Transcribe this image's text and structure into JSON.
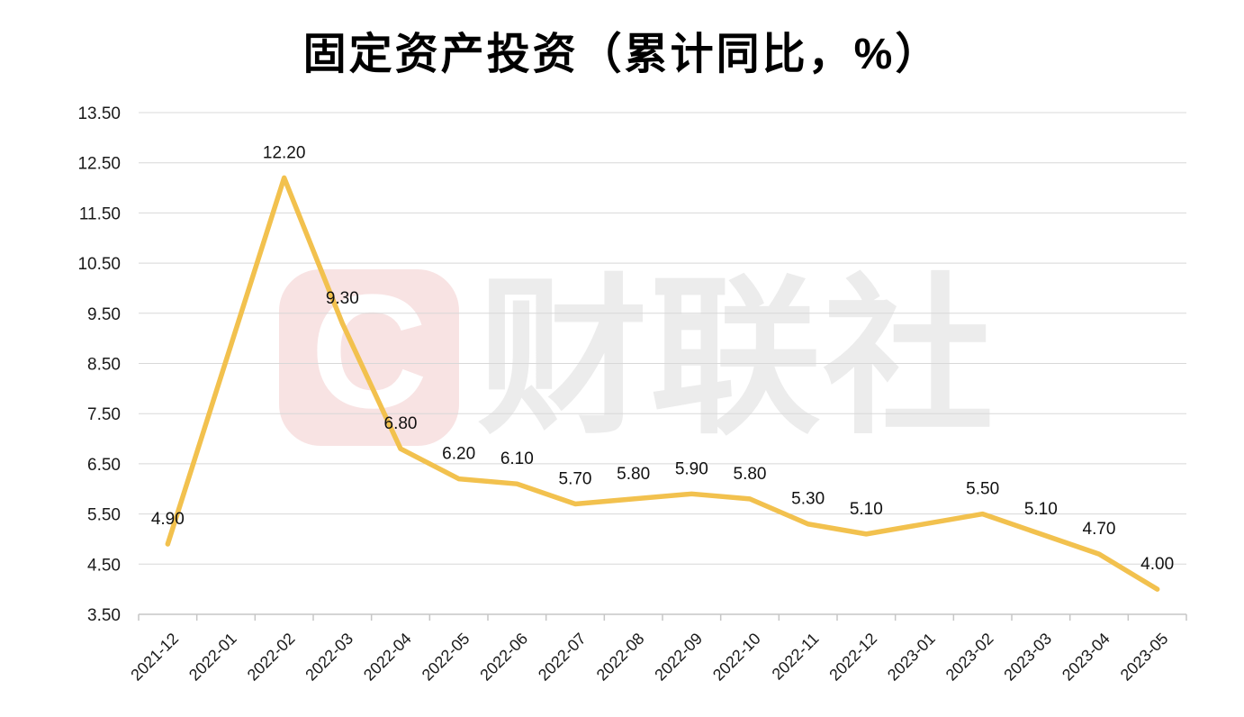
{
  "watermark": {
    "logo_letter": "C",
    "text": "财联社"
  },
  "colors": {
    "line": "#F2C14E",
    "grid": "#D8D8D8",
    "axis": "#C6C6C6",
    "title": "#000000",
    "tick_label": "#1A1A1A",
    "data_label": "#111111",
    "watermark_pink": "#F8E3E3",
    "watermark_gray": "#ECECEC"
  },
  "chart_data": {
    "type": "line",
    "title": "固定资产投资（累计同比，%）",
    "x": [
      "2021-12",
      "2022-01",
      "2022-02",
      "2022-03",
      "2022-04",
      "2022-05",
      "2022-06",
      "2022-07",
      "2022-08",
      "2022-09",
      "2022-10",
      "2022-11",
      "2022-12",
      "2023-01",
      "2023-02",
      "2023-03",
      "2023-04",
      "2023-05"
    ],
    "values": [
      4.9,
      null,
      12.2,
      9.3,
      6.8,
      6.2,
      6.1,
      5.7,
      5.8,
      5.9,
      5.8,
      5.3,
      5.1,
      null,
      5.5,
      5.1,
      4.7,
      4.0
    ],
    "data_labels": [
      "4.90",
      null,
      "12.20",
      "9.30",
      "6.80",
      "6.20",
      "6.10",
      "5.70",
      "5.80",
      "5.90",
      "5.80",
      "5.30",
      "5.10",
      null,
      "5.50",
      "5.10",
      "4.70",
      "4.00"
    ],
    "xlabel": "",
    "ylabel": "",
    "ylim": [
      3.5,
      13.5
    ],
    "ytick_step": 1.0,
    "yticks": [
      "3.50",
      "4.50",
      "5.50",
      "6.50",
      "7.50",
      "8.50",
      "9.50",
      "10.50",
      "11.50",
      "12.50",
      "13.50"
    ],
    "grid": true,
    "legend": false
  }
}
